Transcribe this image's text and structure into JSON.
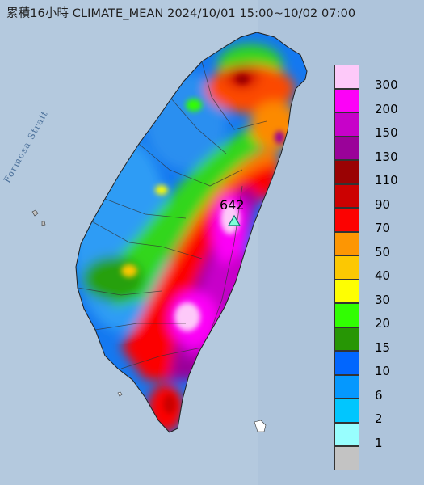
{
  "header": {
    "title": "累積16小時 CLIMATE_MEAN 2024/10/01 15:00~10/02 07:00"
  },
  "map": {
    "sea_label": "Formosa Strait",
    "max_value_label": "642",
    "sea_color": "#b4c9de",
    "island_outline_color": "#202020"
  },
  "legend": {
    "bins": [
      {
        "label": "300",
        "color": "#fdc9f9"
      },
      {
        "label": "200",
        "color": "#fc02f7"
      },
      {
        "label": "150",
        "color": "#c702c9"
      },
      {
        "label": "130",
        "color": "#9a0299"
      },
      {
        "label": "110",
        "color": "#9a0203"
      },
      {
        "label": "90",
        "color": "#cc0101"
      },
      {
        "label": "70",
        "color": "#fc0201"
      },
      {
        "label": "50",
        "color": "#fd9603"
      },
      {
        "label": "40",
        "color": "#fcc802"
      },
      {
        "label": "30",
        "color": "#fefe02"
      },
      {
        "label": "20",
        "color": "#31fe02"
      },
      {
        "label": "15",
        "color": "#279605"
      },
      {
        "label": "10",
        "color": "#0166fe"
      },
      {
        "label": "6",
        "color": "#0598fe"
      },
      {
        "label": "2",
        "color": "#01c6fe"
      },
      {
        "label": "1",
        "color": "#98fefe"
      },
      {
        "label": "",
        "color": "#c3c3c3"
      }
    ]
  }
}
